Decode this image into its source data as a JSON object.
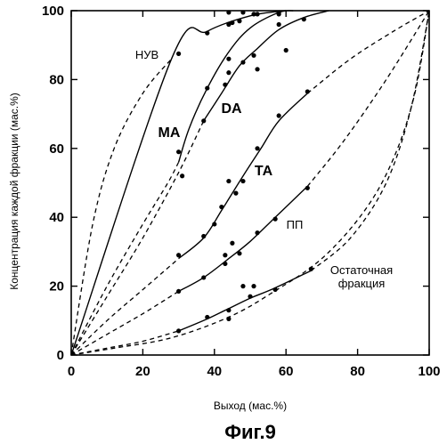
{
  "chart_data": {
    "type": "line",
    "title": "Фиг.9",
    "xlabel": "Выход (мас.%)",
    "ylabel": "Концентрация каждой фракции (мас.%)",
    "xlim": [
      0,
      100
    ],
    "ylim": [
      0,
      100
    ],
    "x_ticks": [
      "0",
      "20",
      "40",
      "60",
      "80",
      "100"
    ],
    "y_ticks": [
      "0",
      "20",
      "40",
      "60",
      "80",
      "100"
    ],
    "grid": false,
    "series": [
      {
        "name": "НУВ",
        "label_lines": [
          "НУВ"
        ],
        "points": [
          [
            30,
            87.5
          ],
          [
            38,
            93.5
          ],
          [
            45,
            96.5
          ],
          [
            52,
            99
          ],
          [
            58,
            99.5
          ]
        ],
        "solid": [
          [
            0,
            0
          ],
          [
            28,
            86
          ],
          [
            38,
            94
          ],
          [
            50,
            98.5
          ],
          [
            60,
            100
          ]
        ],
        "dashed": [
          [
            0,
            0
          ],
          [
            6,
            38
          ],
          [
            12,
            60
          ],
          [
            20,
            76
          ],
          [
            28,
            86
          ]
        ]
      },
      {
        "name": "МА",
        "label_lines": [
          "МА"
        ],
        "points": [
          [
            30,
            59
          ],
          [
            31,
            52
          ],
          [
            38,
            77.5
          ],
          [
            44,
            86
          ],
          [
            44,
            96
          ],
          [
            47,
            97
          ],
          [
            51,
            99
          ],
          [
            58,
            99
          ]
        ],
        "solid": [
          [
            30,
            56
          ],
          [
            33,
            66
          ],
          [
            38,
            77.5
          ],
          [
            44,
            88
          ],
          [
            50,
            95
          ],
          [
            58,
            99.5
          ],
          [
            62,
            100
          ]
        ],
        "dashed": [
          [
            0,
            0
          ],
          [
            10,
            20
          ],
          [
            20,
            38
          ],
          [
            27,
            50
          ],
          [
            30,
            56
          ]
        ]
      },
      {
        "name": "DA",
        "label_lines": [
          "DA"
        ],
        "points": [
          [
            37,
            68
          ],
          [
            43,
            78.5
          ],
          [
            44,
            82
          ],
          [
            48,
            85
          ],
          [
            51,
            87
          ],
          [
            52,
            83
          ],
          [
            58,
            96
          ],
          [
            65,
            97.5
          ],
          [
            44,
            99.5
          ],
          [
            48,
            99.5
          ]
        ],
        "solid": [
          [
            37,
            68
          ],
          [
            42,
            76
          ],
          [
            47,
            84
          ],
          [
            52,
            89
          ],
          [
            58,
            94.5
          ],
          [
            65,
            98
          ],
          [
            72,
            100
          ]
        ],
        "dashed": [
          [
            0,
            0
          ],
          [
            10,
            17
          ],
          [
            20,
            34
          ],
          [
            30,
            53
          ],
          [
            37,
            68
          ]
        ]
      },
      {
        "name": "ТА",
        "label_lines": [
          "ТА"
        ],
        "points": [
          [
            30,
            29
          ],
          [
            37,
            34.5
          ],
          [
            40,
            38
          ],
          [
            42,
            43
          ],
          [
            44,
            50.5
          ],
          [
            46,
            47
          ],
          [
            48,
            50.5
          ],
          [
            52,
            60
          ],
          [
            58,
            69.5
          ],
          [
            66,
            76.5
          ],
          [
            60,
            88.5
          ]
        ],
        "solid": [
          [
            30,
            28
          ],
          [
            37,
            34
          ],
          [
            42,
            42
          ],
          [
            48,
            52
          ],
          [
            53,
            60
          ],
          [
            58,
            68
          ],
          [
            66,
            76
          ]
        ],
        "dashed": [
          [
            0,
            0
          ],
          [
            10,
            10
          ],
          [
            20,
            19
          ],
          [
            30,
            28
          ]
        ],
        "dashed_end": [
          [
            66,
            76
          ],
          [
            78,
            86
          ],
          [
            90,
            94
          ],
          [
            100,
            100
          ]
        ]
      },
      {
        "name": "ПП",
        "label_lines": [
          "ПП"
        ],
        "points": [
          [
            30,
            18.5
          ],
          [
            37,
            22.5
          ],
          [
            43,
            26.5
          ],
          [
            43,
            29
          ],
          [
            45,
            32.5
          ],
          [
            47,
            29.5
          ],
          [
            52,
            35.5
          ],
          [
            57,
            39.5
          ],
          [
            66,
            48.5
          ],
          [
            48,
            20
          ],
          [
            51,
            20
          ]
        ],
        "solid": [
          [
            30,
            18.5
          ],
          [
            37,
            22.5
          ],
          [
            44,
            28
          ],
          [
            50,
            33
          ],
          [
            57,
            40
          ],
          [
            66,
            49
          ]
        ],
        "dashed": [
          [
            0,
            0
          ],
          [
            10,
            6
          ],
          [
            20,
            12
          ],
          [
            30,
            18.5
          ]
        ],
        "dashed_end": [
          [
            66,
            49
          ],
          [
            76,
            62
          ],
          [
            88,
            80
          ],
          [
            100,
            100
          ]
        ]
      },
      {
        "name": "Остаточная фракция",
        "label_lines": [
          "Остаточная",
          "фракция"
        ],
        "points": [
          [
            30,
            7
          ],
          [
            38,
            11
          ],
          [
            44,
            13
          ],
          [
            44,
            10.5
          ],
          [
            50,
            17
          ],
          [
            57,
            19
          ],
          [
            67,
            25
          ]
        ],
        "solid": [
          [
            30,
            7
          ],
          [
            38,
            10.5
          ],
          [
            44,
            13.5
          ],
          [
            50,
            16.5
          ],
          [
            57,
            19.5
          ],
          [
            67,
            24.5
          ]
        ],
        "dashed": [
          [
            0,
            0
          ],
          [
            10,
            2
          ],
          [
            20,
            4
          ],
          [
            30,
            7
          ]
        ],
        "dashed_end": [
          [
            67,
            24.5
          ],
          [
            78,
            34
          ],
          [
            88,
            50
          ],
          [
            95,
            72
          ],
          [
            100,
            100
          ]
        ]
      }
    ],
    "extra_dashed": [
      [
        [
          0,
          0
        ],
        [
          12,
          2
        ],
        [
          28,
          5
        ],
        [
          44,
          11
        ],
        [
          56,
          18
        ],
        [
          70,
          28
        ],
        [
          82,
          42
        ],
        [
          90,
          57
        ],
        [
          96,
          76
        ],
        [
          100,
          100
        ]
      ]
    ]
  }
}
